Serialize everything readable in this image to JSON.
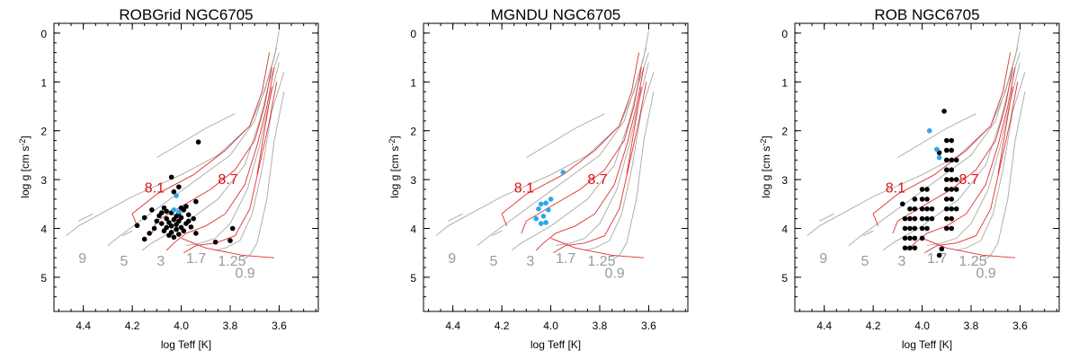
{
  "colors": {
    "track_grey": "#a8a8a8",
    "track_red": "#e03030",
    "label_red": "#dd1111",
    "label_grey": "#9a9a9a",
    "point_black": "#000000",
    "point_blue": "#2aa8e8"
  },
  "chart_data": [
    {
      "type": "scatter",
      "title": "ROBGrid NGC6705",
      "xlabel": "log Teff [K]",
      "ylabel_main": "log g [cm s",
      "ylabel_sup": "-2",
      "ylabel_end": "]",
      "xlim": [
        4.52,
        3.44
      ],
      "ylim": [
        5.7,
        -0.2
      ],
      "xticks": [
        4.4,
        4.2,
        4.0,
        3.8,
        3.6
      ],
      "xtick_labels": [
        "4.4",
        "4.2",
        "4.0",
        "3.8",
        "3.6"
      ],
      "yticks": [
        0,
        1,
        2,
        3,
        4,
        5
      ],
      "ytick_labels": [
        "0",
        "1",
        "2",
        "3",
        "4",
        "5"
      ],
      "mass_labels": [
        {
          "text": "9",
          "x": 4.42,
          "y": 4.6,
          "color": "grey"
        },
        {
          "text": "5",
          "x": 4.25,
          "y": 4.65,
          "color": "grey"
        },
        {
          "text": "3",
          "x": 4.1,
          "y": 4.65,
          "color": "grey"
        },
        {
          "text": "1.7",
          "x": 3.98,
          "y": 4.6,
          "color": "grey"
        },
        {
          "text": "1.25",
          "x": 3.85,
          "y": 4.65,
          "color": "grey"
        },
        {
          "text": "0.9",
          "x": 3.78,
          "y": 4.9,
          "color": "grey"
        },
        {
          "text": "8.1",
          "x": 4.15,
          "y": 3.15,
          "color": "red"
        },
        {
          "text": "8.7",
          "x": 3.85,
          "y": 2.98,
          "color": "red"
        }
      ],
      "black_points": [
        [
          3.93,
          2.23
        ],
        [
          4.04,
          2.95
        ],
        [
          4.01,
          3.15
        ],
        [
          4.03,
          3.25
        ],
        [
          3.94,
          3.45
        ],
        [
          3.98,
          3.55
        ],
        [
          4.07,
          3.58
        ],
        [
          4.12,
          3.62
        ],
        [
          3.99,
          3.62
        ],
        [
          4.06,
          3.65
        ],
        [
          4.04,
          3.68
        ],
        [
          4.01,
          3.7
        ],
        [
          3.97,
          3.72
        ],
        [
          4.09,
          3.74
        ],
        [
          4.02,
          3.75
        ],
        [
          4.15,
          3.78
        ],
        [
          4.0,
          3.78
        ],
        [
          4.06,
          3.8
        ],
        [
          3.95,
          3.8
        ],
        [
          4.03,
          3.82
        ],
        [
          4.1,
          3.85
        ],
        [
          4.01,
          3.85
        ],
        [
          4.05,
          3.88
        ],
        [
          3.98,
          3.9
        ],
        [
          4.08,
          3.9
        ],
        [
          4.02,
          3.92
        ],
        [
          4.18,
          3.94
        ],
        [
          4.04,
          3.95
        ],
        [
          3.96,
          3.97
        ],
        [
          4.0,
          3.98
        ],
        [
          4.06,
          3.98
        ],
        [
          4.11,
          4.0
        ],
        [
          3.79,
          4.0
        ],
        [
          4.02,
          4.02
        ],
        [
          4.07,
          4.05
        ],
        [
          3.99,
          4.05
        ],
        [
          4.04,
          4.08
        ],
        [
          3.94,
          4.1
        ],
        [
          4.13,
          4.1
        ],
        [
          4.01,
          4.12
        ],
        [
          4.05,
          4.14
        ],
        [
          4.15,
          4.22
        ],
        [
          3.8,
          4.25
        ],
        [
          3.86,
          4.28
        ],
        [
          4.03,
          4.18
        ],
        [
          4.0,
          3.58
        ],
        [
          4.08,
          3.68
        ],
        [
          3.97,
          3.85
        ]
      ],
      "blue_points": [
        [
          4.02,
          3.33
        ],
        [
          4.03,
          3.62
        ],
        [
          4.01,
          3.66
        ]
      ]
    },
    {
      "type": "scatter",
      "title": "MGNDU NGC6705",
      "xlabel": "log Teff [K]",
      "ylabel_main": "log g [cm s",
      "ylabel_sup": "-2",
      "ylabel_end": "]",
      "xlim": [
        4.52,
        3.44
      ],
      "ylim": [
        5.7,
        -0.2
      ],
      "xticks": [
        4.4,
        4.2,
        4.0,
        3.8,
        3.6
      ],
      "xtick_labels": [
        "4.4",
        "4.2",
        "4.0",
        "3.8",
        "3.6"
      ],
      "yticks": [
        0,
        1,
        2,
        3,
        4,
        5
      ],
      "ytick_labels": [
        "0",
        "1",
        "2",
        "3",
        "4",
        "5"
      ],
      "mass_labels": [
        {
          "text": "9",
          "x": 4.42,
          "y": 4.6,
          "color": "grey"
        },
        {
          "text": "5",
          "x": 4.25,
          "y": 4.65,
          "color": "grey"
        },
        {
          "text": "3",
          "x": 4.1,
          "y": 4.65,
          "color": "grey"
        },
        {
          "text": "1.7",
          "x": 3.98,
          "y": 4.6,
          "color": "grey"
        },
        {
          "text": "1.25",
          "x": 3.85,
          "y": 4.65,
          "color": "grey"
        },
        {
          "text": "0.9",
          "x": 3.78,
          "y": 4.9,
          "color": "grey"
        },
        {
          "text": "8.1",
          "x": 4.15,
          "y": 3.15,
          "color": "red"
        },
        {
          "text": "8.7",
          "x": 3.85,
          "y": 2.98,
          "color": "red"
        }
      ],
      "black_points": [],
      "blue_points": [
        [
          3.95,
          2.85
        ],
        [
          4.0,
          3.4
        ],
        [
          4.02,
          3.48
        ],
        [
          4.04,
          3.5
        ],
        [
          4.05,
          3.6
        ],
        [
          4.01,
          3.62
        ],
        [
          4.03,
          3.75
        ],
        [
          4.06,
          3.8
        ],
        [
          4.02,
          3.88
        ],
        [
          4.04,
          3.9
        ]
      ]
    },
    {
      "type": "scatter",
      "title": "ROB NGC6705",
      "xlabel": "log Teff [K]",
      "ylabel_main": "log g [cm s",
      "ylabel_sup": "-2",
      "ylabel_end": "]",
      "xlim": [
        4.52,
        3.44
      ],
      "ylim": [
        5.7,
        -0.2
      ],
      "xticks": [
        4.4,
        4.2,
        4.0,
        3.8,
        3.6
      ],
      "xtick_labels": [
        "4.4",
        "4.2",
        "4.0",
        "3.8",
        "3.6"
      ],
      "yticks": [
        0,
        1,
        2,
        3,
        4,
        5
      ],
      "ytick_labels": [
        "0",
        "1",
        "2",
        "3",
        "4",
        "5"
      ],
      "mass_labels": [
        {
          "text": "9",
          "x": 4.42,
          "y": 4.6,
          "color": "grey"
        },
        {
          "text": "5",
          "x": 4.25,
          "y": 4.65,
          "color": "grey"
        },
        {
          "text": "3",
          "x": 4.1,
          "y": 4.65,
          "color": "grey"
        },
        {
          "text": "1.7",
          "x": 3.98,
          "y": 4.6,
          "color": "grey"
        },
        {
          "text": "1.25",
          "x": 3.85,
          "y": 4.65,
          "color": "grey"
        },
        {
          "text": "0.9",
          "x": 3.78,
          "y": 4.9,
          "color": "grey"
        },
        {
          "text": "8.1",
          "x": 4.15,
          "y": 3.15,
          "color": "red"
        },
        {
          "text": "8.7",
          "x": 3.85,
          "y": 2.98,
          "color": "red"
        }
      ],
      "black_points": [
        [
          3.91,
          1.6
        ],
        [
          3.9,
          2.2
        ],
        [
          3.88,
          2.2
        ],
        [
          3.9,
          2.4
        ],
        [
          3.88,
          2.4
        ],
        [
          3.9,
          2.6
        ],
        [
          3.88,
          2.6
        ],
        [
          3.86,
          2.6
        ],
        [
          3.9,
          2.8
        ],
        [
          3.88,
          2.8
        ],
        [
          3.9,
          3.0
        ],
        [
          3.88,
          3.0
        ],
        [
          3.86,
          3.0
        ],
        [
          3.9,
          3.2
        ],
        [
          3.88,
          3.2
        ],
        [
          3.86,
          3.2
        ],
        [
          3.9,
          3.4
        ],
        [
          3.88,
          3.4
        ],
        [
          3.9,
          3.6
        ],
        [
          3.88,
          3.6
        ],
        [
          3.86,
          3.6
        ],
        [
          3.9,
          3.8
        ],
        [
          3.88,
          3.8
        ],
        [
          3.9,
          4.0
        ],
        [
          3.88,
          4.0
        ],
        [
          4.0,
          3.2
        ],
        [
          3.98,
          3.2
        ],
        [
          4.0,
          3.4
        ],
        [
          3.98,
          3.4
        ],
        [
          4.0,
          3.6
        ],
        [
          3.98,
          3.6
        ],
        [
          3.96,
          3.6
        ],
        [
          4.0,
          3.8
        ],
        [
          3.98,
          3.8
        ],
        [
          3.96,
          3.8
        ],
        [
          4.0,
          4.0
        ],
        [
          3.98,
          4.0
        ],
        [
          4.0,
          4.2
        ],
        [
          4.03,
          3.4
        ],
        [
          4.05,
          3.6
        ],
        [
          4.03,
          3.6
        ],
        [
          4.05,
          3.8
        ],
        [
          4.03,
          3.8
        ],
        [
          4.07,
          3.8
        ],
        [
          4.05,
          4.0
        ],
        [
          4.03,
          4.0
        ],
        [
          4.07,
          4.0
        ],
        [
          4.05,
          4.2
        ],
        [
          4.03,
          4.2
        ],
        [
          4.07,
          4.2
        ],
        [
          4.05,
          4.4
        ],
        [
          4.03,
          4.4
        ],
        [
          4.07,
          4.4
        ],
        [
          4.08,
          3.5
        ],
        [
          3.93,
          4.55
        ],
        [
          3.92,
          4.42
        ],
        [
          3.93,
          2.45
        ]
      ],
      "blue_points": [
        [
          3.97,
          2.0
        ],
        [
          3.94,
          2.38
        ],
        [
          3.93,
          2.55
        ]
      ]
    }
  ]
}
